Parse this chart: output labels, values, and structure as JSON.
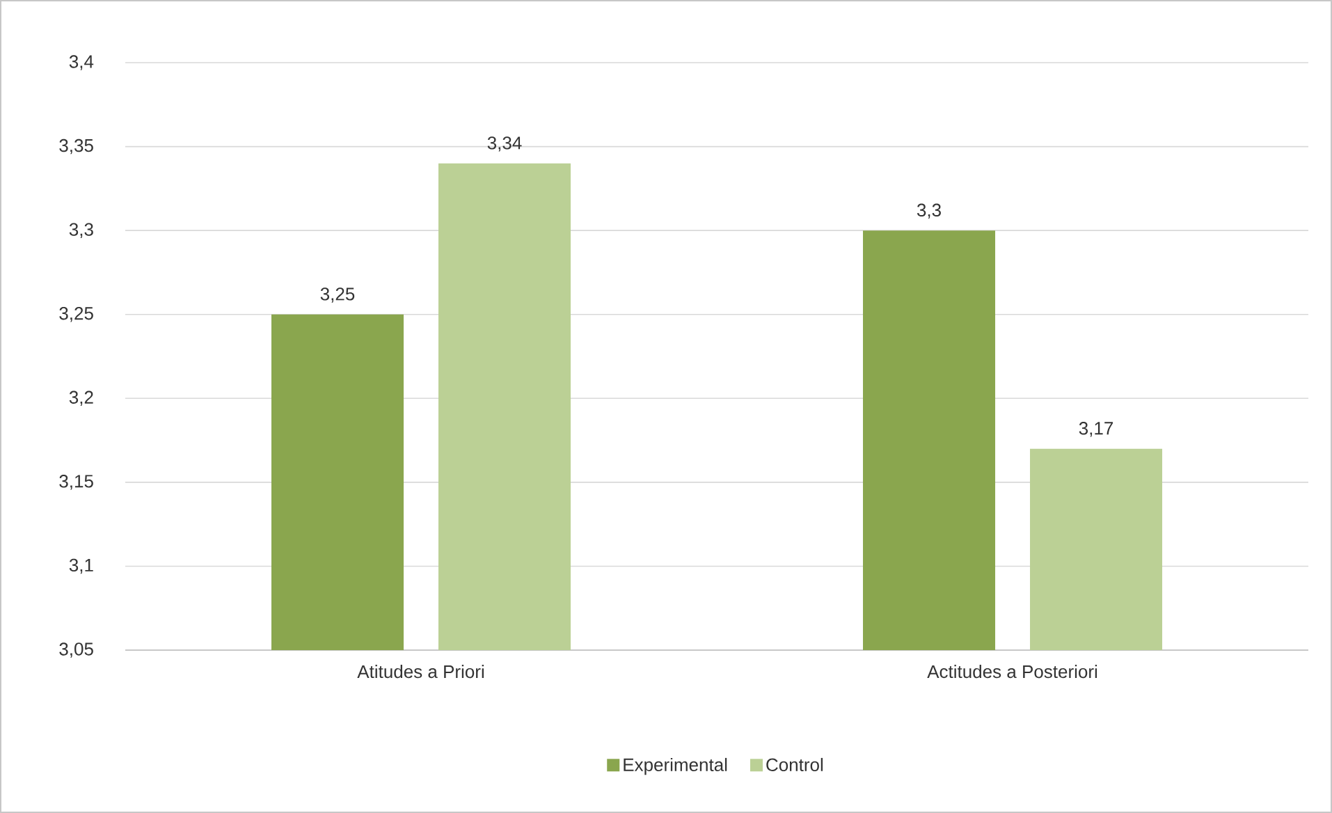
{
  "chart_data": {
    "type": "bar",
    "categories": [
      "Atitudes a Priori",
      "Actitudes a Posteriori"
    ],
    "series": [
      {
        "name": "Experimental",
        "color": "#8aa64e",
        "values": [
          3.25,
          3.3
        ],
        "value_labels": [
          "3,25",
          "3,3"
        ]
      },
      {
        "name": "Control",
        "color": "#bbd095",
        "values": [
          3.34,
          3.17
        ],
        "value_labels": [
          "3,34",
          "3,17"
        ]
      }
    ],
    "ylim": [
      3.05,
      3.4
    ],
    "yticks": [
      {
        "value": 3.05,
        "label": "3,05"
      },
      {
        "value": 3.1,
        "label": "3,1"
      },
      {
        "value": 3.15,
        "label": "3,15"
      },
      {
        "value": 3.2,
        "label": "3,2"
      },
      {
        "value": 3.25,
        "label": "3,25"
      },
      {
        "value": 3.3,
        "label": "3,3"
      },
      {
        "value": 3.35,
        "label": "3,35"
      },
      {
        "value": 3.4,
        "label": "3,4"
      }
    ],
    "grid": "y",
    "legend": "bottom"
  }
}
